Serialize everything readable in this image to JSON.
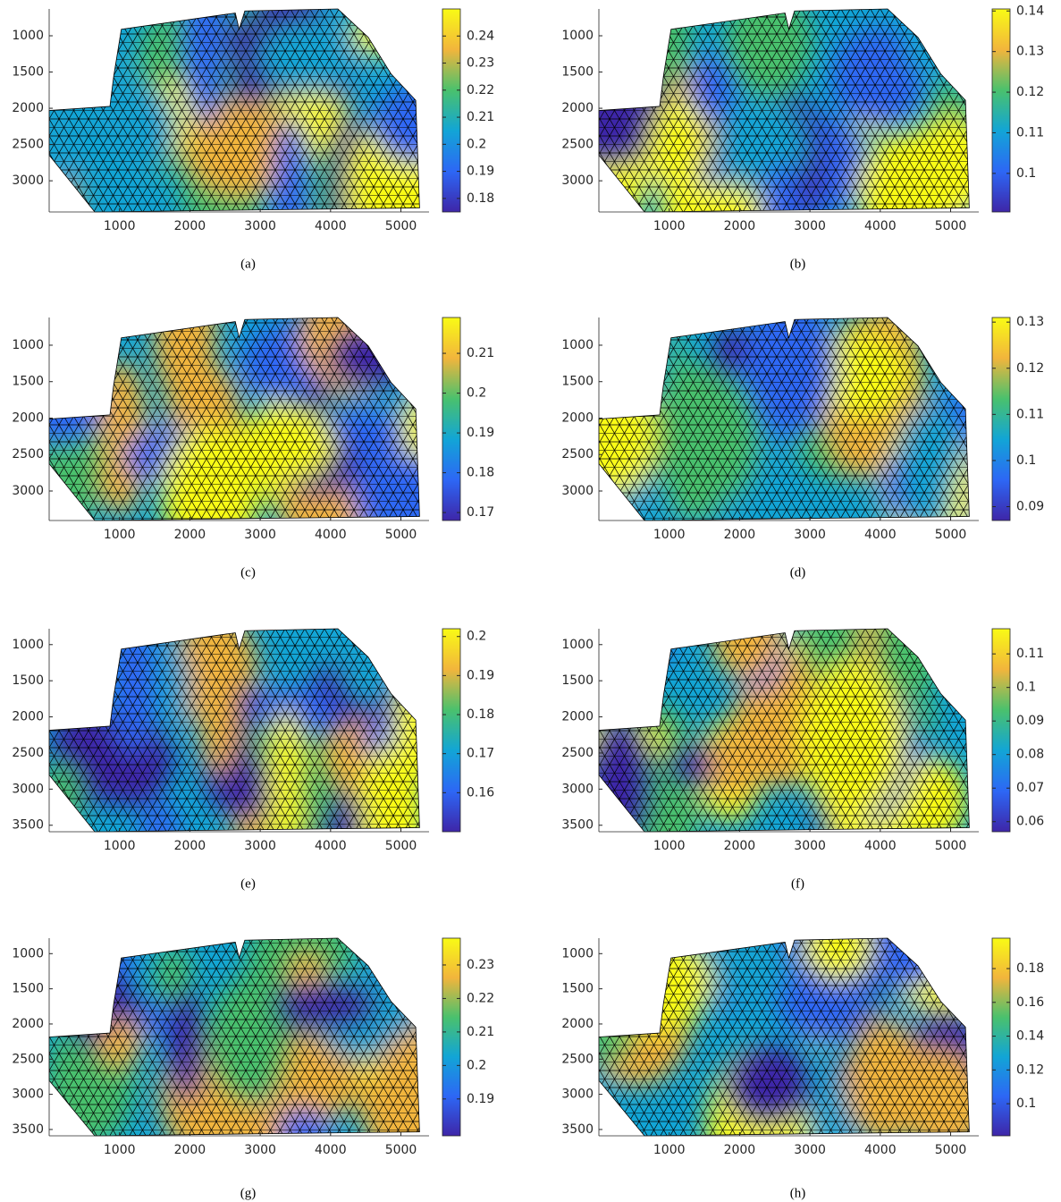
{
  "chart_data": [
    {
      "type": "mesh",
      "caption": "(a)",
      "xlim": [
        0,
        5400
      ],
      "xticks": [
        1000,
        2000,
        3000,
        4000,
        5000
      ],
      "ylim": [
        630,
        3430
      ],
      "yticks": [
        1000,
        1500,
        2000,
        2500,
        3000
      ],
      "clim": [
        0.175,
        0.25
      ],
      "cticks": [
        0.18,
        0.19,
        0.2,
        0.21,
        0.22,
        0.23,
        0.24
      ]
    },
    {
      "type": "mesh",
      "caption": "(b)",
      "xlim": [
        0,
        5400
      ],
      "xticks": [
        1000,
        2000,
        3000,
        4000,
        5000
      ],
      "ylim": [
        630,
        3430
      ],
      "yticks": [
        1000,
        1500,
        2000,
        2500,
        3000
      ],
      "clim": [
        0.0905,
        0.1405
      ],
      "cticks": [
        0.1,
        0.11,
        0.12,
        0.13,
        0.14
      ]
    },
    {
      "type": "mesh",
      "caption": "(c)",
      "xlim": [
        0,
        5400
      ],
      "xticks": [
        1000,
        2000,
        3000,
        4000,
        5000
      ],
      "ylim": [
        620,
        3405
      ],
      "yticks": [
        1000,
        1500,
        2000,
        2500,
        3000
      ],
      "clim": [
        0.168,
        0.219
      ],
      "cticks": [
        0.17,
        0.18,
        0.19,
        0.2,
        0.21
      ]
    },
    {
      "type": "mesh",
      "caption": "(d)",
      "xlim": [
        0,
        5400
      ],
      "xticks": [
        1000,
        2000,
        3000,
        4000,
        5000
      ],
      "ylim": [
        620,
        3405
      ],
      "yticks": [
        1000,
        1500,
        2000,
        2500,
        3000
      ],
      "clim": [
        0.087,
        0.131
      ],
      "cticks": [
        0.09,
        0.1,
        0.11,
        0.12,
        0.13
      ]
    },
    {
      "type": "mesh",
      "caption": "(e)",
      "xlim": [
        0,
        5400
      ],
      "xticks": [
        1000,
        2000,
        3000,
        4000,
        5000
      ],
      "ylim": [
        780,
        3590
      ],
      "yticks": [
        1000,
        1500,
        2000,
        2500,
        3000,
        3500
      ],
      "clim": [
        0.15,
        0.202
      ],
      "cticks": [
        0.16,
        0.17,
        0.18,
        0.19,
        0.2
      ]
    },
    {
      "type": "mesh",
      "caption": "(f)",
      "xlim": [
        0,
        5400
      ],
      "xticks": [
        1000,
        2000,
        3000,
        4000,
        5000
      ],
      "ylim": [
        780,
        3590
      ],
      "yticks": [
        1000,
        1500,
        2000,
        2500,
        3000,
        3500
      ],
      "clim": [
        0.057,
        0.1175
      ],
      "cticks": [
        0.06,
        0.07,
        0.08,
        0.09,
        0.1,
        0.11
      ]
    },
    {
      "type": "mesh",
      "caption": "(g)",
      "xlim": [
        0,
        5400
      ],
      "xticks": [
        1000,
        2000,
        3000,
        4000,
        5000
      ],
      "ylim": [
        780,
        3590
      ],
      "yticks": [
        1000,
        1500,
        2000,
        2500,
        3000,
        3500
      ],
      "clim": [
        0.179,
        0.238
      ],
      "cticks": [
        0.19,
        0.2,
        0.21,
        0.22,
        0.23
      ]
    },
    {
      "type": "mesh",
      "caption": "(h)",
      "xlim": [
        0,
        5400
      ],
      "xticks": [
        1000,
        2000,
        3000,
        4000,
        5000
      ],
      "ylim": [
        780,
        3590
      ],
      "yticks": [
        1000,
        1500,
        2000,
        2500,
        3000,
        3500
      ],
      "clim": [
        0.081,
        0.198
      ],
      "cticks": [
        0.1,
        0.12,
        0.14,
        0.16,
        0.18
      ]
    }
  ]
}
